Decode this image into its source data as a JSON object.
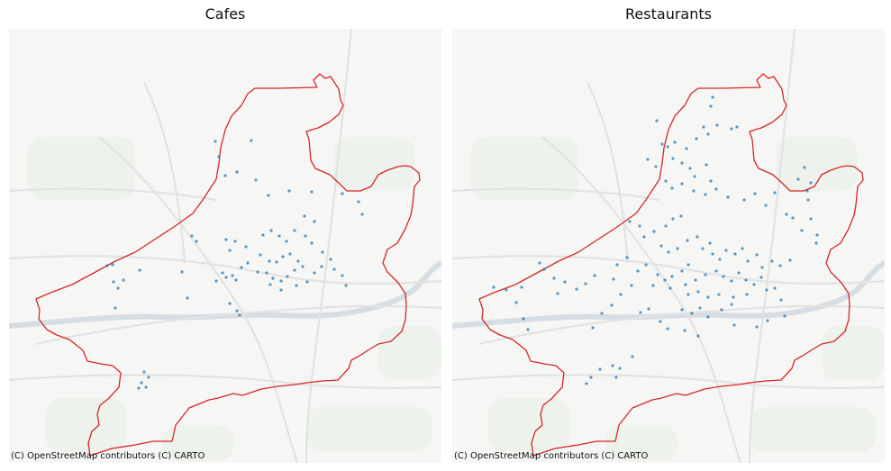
{
  "panels": [
    {
      "title": "Cafes",
      "attribution": "(C) OpenStreetMap contributors (C) CARTO",
      "points": [
        [
          279,
          156
        ],
        [
          239,
          157
        ],
        [
          243,
          174
        ],
        [
          250,
          195
        ],
        [
          263,
          191
        ],
        [
          284,
          200
        ],
        [
          321,
          212
        ],
        [
          298,
          217
        ],
        [
          346,
          213
        ],
        [
          338,
          240
        ],
        [
          349,
          246
        ],
        [
          380,
          215
        ],
        [
          398,
          224
        ],
        [
          402,
          238
        ],
        [
          213,
          262
        ],
        [
          218,
          268
        ],
        [
          251,
          266
        ],
        [
          261,
          268
        ],
        [
          255,
          278
        ],
        [
          273,
          274
        ],
        [
          292,
          261
        ],
        [
          301,
          256
        ],
        [
          310,
          262
        ],
        [
          318,
          268
        ],
        [
          327,
          256
        ],
        [
          339,
          262
        ],
        [
          346,
          270
        ],
        [
          289,
          283
        ],
        [
          299,
          290
        ],
        [
          307,
          291
        ],
        [
          314,
          285
        ],
        [
          322,
          282
        ],
        [
          331,
          290
        ],
        [
          275,
          292
        ],
        [
          268,
          297
        ],
        [
          258,
          306
        ],
        [
          247,
          303
        ],
        [
          240,
          312
        ],
        [
          251,
          308
        ],
        [
          262,
          311
        ],
        [
          286,
          302
        ],
        [
          296,
          303
        ],
        [
          303,
          309
        ],
        [
          312,
          312
        ],
        [
          319,
          307
        ],
        [
          327,
          300
        ],
        [
          336,
          296
        ],
        [
          349,
          303
        ],
        [
          357,
          296
        ],
        [
          341,
          313
        ],
        [
          329,
          317
        ],
        [
          312,
          322
        ],
        [
          300,
          316
        ],
        [
          358,
          280
        ],
        [
          367,
          288
        ],
        [
          371,
          299
        ],
        [
          380,
          306
        ],
        [
          384,
          317
        ],
        [
          202,
          302
        ],
        [
          208,
          331
        ],
        [
          155,
          300
        ],
        [
          126,
          313
        ],
        [
          131,
          320
        ],
        [
          137,
          311
        ],
        [
          125,
          294
        ],
        [
          119,
          295
        ],
        [
          128,
          342
        ],
        [
          255,
          337
        ],
        [
          263,
          345
        ],
        [
          266,
          350
        ],
        [
          160,
          413
        ],
        [
          165,
          419
        ],
        [
          157,
          425
        ],
        [
          154,
          431
        ],
        [
          162,
          430
        ]
      ]
    },
    {
      "title": "Restaurants",
      "attribution": "(C) OpenStreetMap contributors (C) CARTO",
      "points": [
        [
          791,
          108
        ],
        [
          789,
          118
        ],
        [
          781,
          141
        ],
        [
          786,
          149
        ],
        [
          773,
          154
        ],
        [
          796,
          139
        ],
        [
          812,
          143
        ],
        [
          818,
          141
        ],
        [
          729,
          134
        ],
        [
          735,
          160
        ],
        [
          741,
          163
        ],
        [
          749,
          158
        ],
        [
          762,
          165
        ],
        [
          747,
          176
        ],
        [
          728,
          185
        ],
        [
          719,
          177
        ],
        [
          757,
          181
        ],
        [
          766,
          187
        ],
        [
          771,
          196
        ],
        [
          784,
          183
        ],
        [
          789,
          201
        ],
        [
          739,
          201
        ],
        [
          746,
          209
        ],
        [
          757,
          204
        ],
        [
          770,
          212
        ],
        [
          783,
          216
        ],
        [
          795,
          210
        ],
        [
          808,
          219
        ],
        [
          826,
          222
        ],
        [
          838,
          215
        ],
        [
          850,
          228
        ],
        [
          860,
          214
        ],
        [
          886,
          199
        ],
        [
          893,
          186
        ],
        [
          900,
          203
        ],
        [
          897,
          222
        ],
        [
          880,
          242
        ],
        [
          873,
          238
        ],
        [
          890,
          256
        ],
        [
          907,
          261
        ],
        [
          906,
          270
        ],
        [
          699,
          246
        ],
        [
          710,
          251
        ],
        [
          715,
          263
        ],
        [
          726,
          257
        ],
        [
          739,
          251
        ],
        [
          747,
          243
        ],
        [
          756,
          240
        ],
        [
          734,
          273
        ],
        [
          742,
          280
        ],
        [
          752,
          276
        ],
        [
          763,
          267
        ],
        [
          774,
          263
        ],
        [
          780,
          276
        ],
        [
          788,
          270
        ],
        [
          791,
          282
        ],
        [
          799,
          288
        ],
        [
          806,
          278
        ],
        [
          816,
          282
        ],
        [
          824,
          276
        ],
        [
          830,
          290
        ],
        [
          840,
          283
        ],
        [
          846,
          297
        ],
        [
          857,
          290
        ],
        [
          866,
          295
        ],
        [
          877,
          289
        ],
        [
          764,
          294
        ],
        [
          757,
          301
        ],
        [
          746,
          307
        ],
        [
          738,
          311
        ],
        [
          730,
          305
        ],
        [
          725,
          317
        ],
        [
          744,
          320
        ],
        [
          761,
          316
        ],
        [
          772,
          311
        ],
        [
          783,
          305
        ],
        [
          795,
          301
        ],
        [
          803,
          307
        ],
        [
          812,
          312
        ],
        [
          820,
          303
        ],
        [
          828,
          311
        ],
        [
          837,
          316
        ],
        [
          845,
          308
        ],
        [
          851,
          322
        ],
        [
          829,
          327
        ],
        [
          814,
          330
        ],
        [
          798,
          327
        ],
        [
          786,
          330
        ],
        [
          775,
          324
        ],
        [
          764,
          327
        ],
        [
          757,
          344
        ],
        [
          768,
          348
        ],
        [
          777,
          342
        ],
        [
          786,
          352
        ],
        [
          801,
          344
        ],
        [
          812,
          338
        ],
        [
          658,
          364
        ],
        [
          668,
          348
        ],
        [
          679,
          339
        ],
        [
          689,
          327
        ],
        [
          701,
          317
        ],
        [
          708,
          301
        ],
        [
          717,
          294
        ],
        [
          696,
          286
        ],
        [
          685,
          294
        ],
        [
          681,
          310
        ],
        [
          660,
          306
        ],
        [
          650,
          315
        ],
        [
          640,
          321
        ],
        [
          627,
          313
        ],
        [
          619,
          326
        ],
        [
          615,
          309
        ],
        [
          604,
          299
        ],
        [
          599,
          292
        ],
        [
          579,
          319
        ],
        [
          573,
          336
        ],
        [
          581,
          354
        ],
        [
          586,
          366
        ],
        [
          562,
          322
        ],
        [
          548,
          319
        ],
        [
          760,
          367
        ],
        [
          775,
          373
        ],
        [
          741,
          365
        ],
        [
          733,
          357
        ],
        [
          720,
          343
        ],
        [
          711,
          347
        ],
        [
          860,
          320
        ],
        [
          867,
          333
        ],
        [
          871,
          351
        ],
        [
          852,
          356
        ],
        [
          840,
          363
        ],
        [
          815,
          361
        ],
        [
          656,
          419
        ],
        [
          651,
          426
        ],
        [
          666,
          410
        ],
        [
          680,
          406
        ],
        [
          688,
          409
        ],
        [
          684,
          419
        ],
        [
          702,
          396
        ],
        [
          896,
          212
        ],
        [
          900,
          243
        ]
      ]
    }
  ]
}
